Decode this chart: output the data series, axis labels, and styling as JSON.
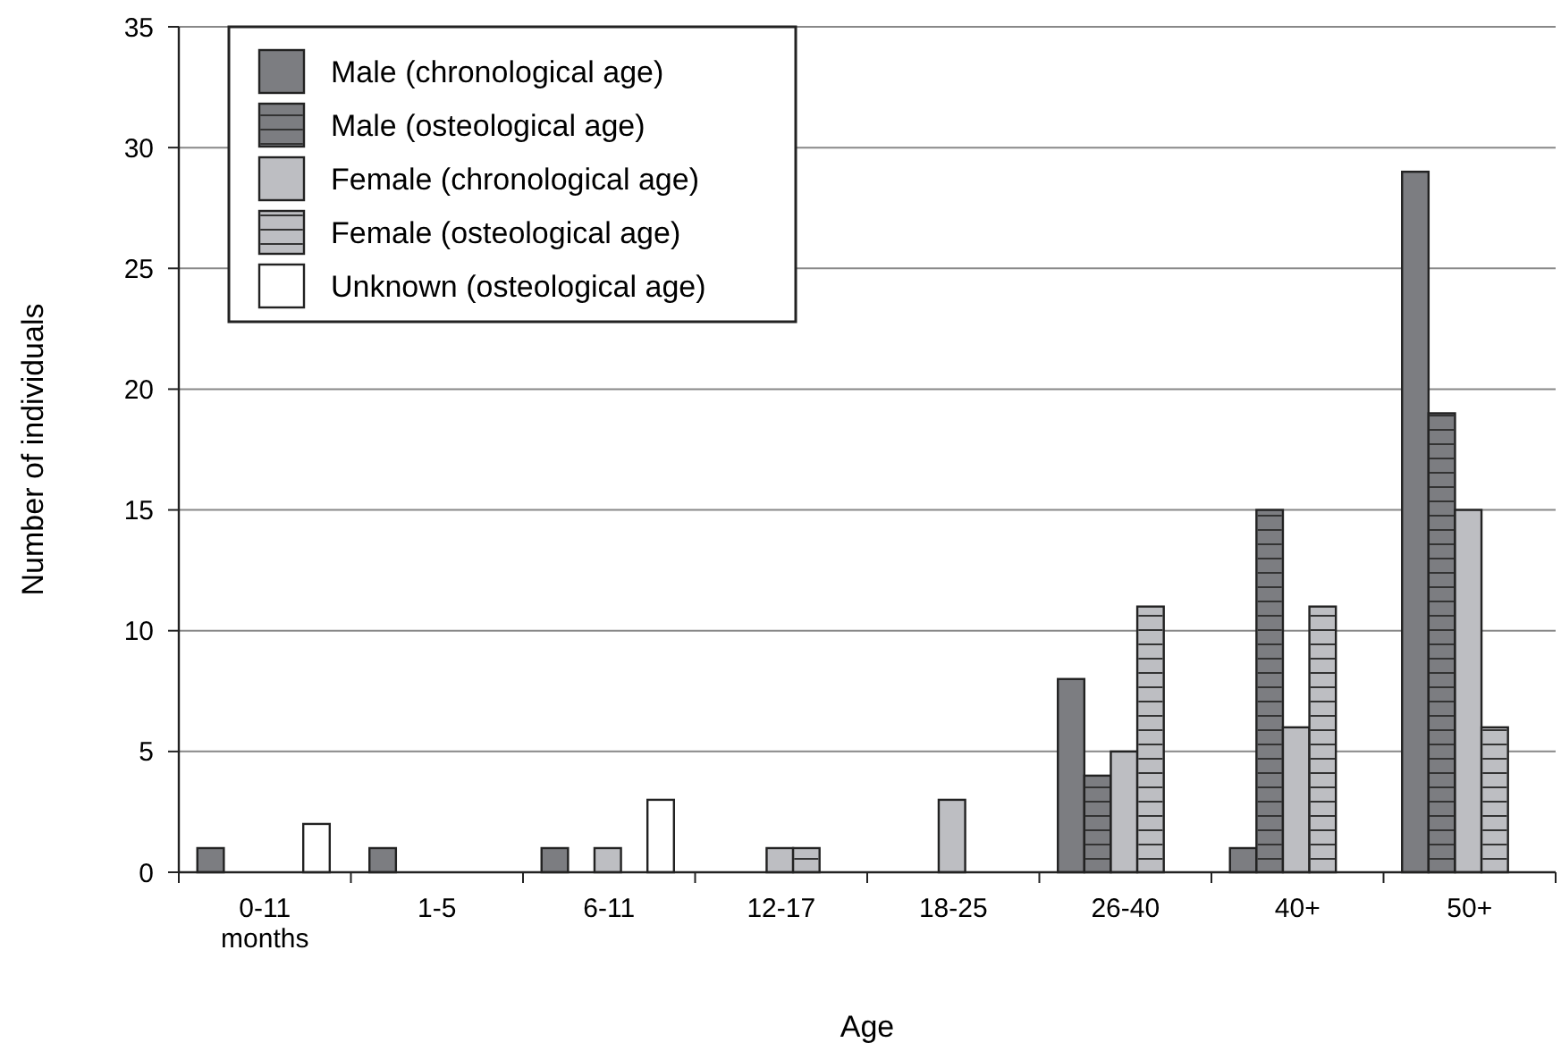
{
  "chart_data": {
    "type": "bar",
    "xlabel": "Age",
    "ylabel": "Number of individuals",
    "categories": [
      "0-11 months",
      "1-5",
      "6-11",
      "12-17",
      "18-25",
      "26-40",
      "40+",
      "50+"
    ],
    "series": [
      {
        "name": "Male (chronological age)",
        "color": "#7c7d81",
        "values": [
          1,
          1,
          1,
          0,
          0,
          8,
          1,
          29
        ]
      },
      {
        "name": "Male (osteological age)",
        "color": "#7c7d81",
        "values": [
          0,
          0,
          0,
          0,
          0,
          4,
          15,
          19
        ]
      },
      {
        "name": "Female (chronological age)",
        "color": "#bdbec2",
        "values": [
          0,
          0,
          1,
          1,
          3,
          5,
          6,
          15
        ]
      },
      {
        "name": "Female (osteological age)",
        "color": "#bdbec2",
        "values": [
          0,
          0,
          0,
          1,
          0,
          11,
          11,
          6
        ]
      },
      {
        "name": "Unknown (osteological age)",
        "color": "#ffffff",
        "values": [
          2,
          0,
          3,
          0,
          0,
          0,
          0,
          0
        ]
      }
    ],
    "ylim": [
      0,
      35
    ],
    "yticks": [
      0,
      5,
      10,
      15,
      20,
      25,
      30,
      35
    ],
    "grid": "y",
    "legend": "top left"
  }
}
